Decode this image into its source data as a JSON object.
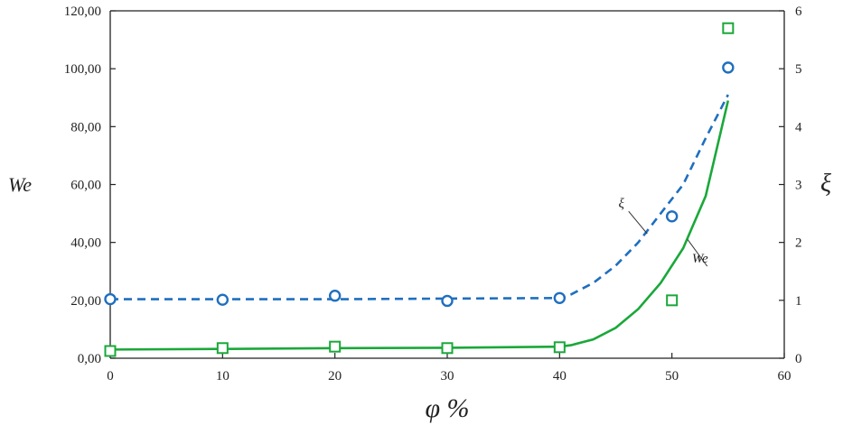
{
  "chart_data": {
    "type": "scatter",
    "title": "",
    "xlabel": "φ %",
    "ylabel_left": "We",
    "ylabel_right": "ξ",
    "xlim": [
      0,
      60
    ],
    "ylim_left": [
      0,
      120
    ],
    "ylim_right": [
      0,
      6
    ],
    "x_ticks": [
      "0",
      "10",
      "20",
      "30",
      "40",
      "50",
      "60"
    ],
    "y_left_ticks": [
      "0,00",
      "20,00",
      "40,00",
      "60,00",
      "80,00",
      "100,00",
      "120,00"
    ],
    "y_right_ticks": [
      "0",
      "1",
      "2",
      "3",
      "4",
      "5",
      "6"
    ],
    "grid": false,
    "series": [
      {
        "name": "We",
        "axis": "left",
        "marker": "square",
        "color": "#1aa83a",
        "points": [
          [
            0,
            2.5
          ],
          [
            10,
            3.5
          ],
          [
            20,
            4.0
          ],
          [
            30,
            3.5
          ],
          [
            40,
            3.8
          ],
          [
            50,
            20.0
          ],
          [
            55,
            114.0
          ]
        ],
        "fit": [
          [
            0,
            3.0
          ],
          [
            10,
            3.2
          ],
          [
            20,
            3.5
          ],
          [
            30,
            3.6
          ],
          [
            40,
            4.0
          ],
          [
            41,
            4.5
          ],
          [
            43,
            6.5
          ],
          [
            45,
            10.5
          ],
          [
            47,
            17.0
          ],
          [
            49,
            26.0
          ],
          [
            51,
            38.0
          ],
          [
            53,
            56.0
          ],
          [
            55,
            89.0
          ]
        ]
      },
      {
        "name": "ξ",
        "axis": "right",
        "marker": "circle",
        "color": "#1f6fbf",
        "points": [
          [
            0,
            1.02
          ],
          [
            10,
            1.01
          ],
          [
            20,
            1.08
          ],
          [
            30,
            0.99
          ],
          [
            40,
            1.04
          ],
          [
            50,
            2.45
          ],
          [
            55,
            5.02
          ]
        ],
        "fit": [
          [
            0,
            1.02
          ],
          [
            10,
            1.02
          ],
          [
            20,
            1.02
          ],
          [
            30,
            1.03
          ],
          [
            40,
            1.04
          ],
          [
            41,
            1.1
          ],
          [
            43,
            1.3
          ],
          [
            45,
            1.6
          ],
          [
            47,
            2.0
          ],
          [
            49,
            2.5
          ],
          [
            51,
            3.0
          ],
          [
            53,
            3.8
          ],
          [
            55,
            4.55
          ]
        ]
      }
    ],
    "annotations": [
      {
        "text": "ξ",
        "x": 45.5,
        "y": 2.6,
        "axis": "right",
        "target_x": 47.8,
        "target_y": 2.15
      },
      {
        "text": "We",
        "x": 52.5,
        "y": 33.0,
        "axis": "left",
        "target_x": 51.4,
        "target_y": 41.0
      }
    ]
  }
}
